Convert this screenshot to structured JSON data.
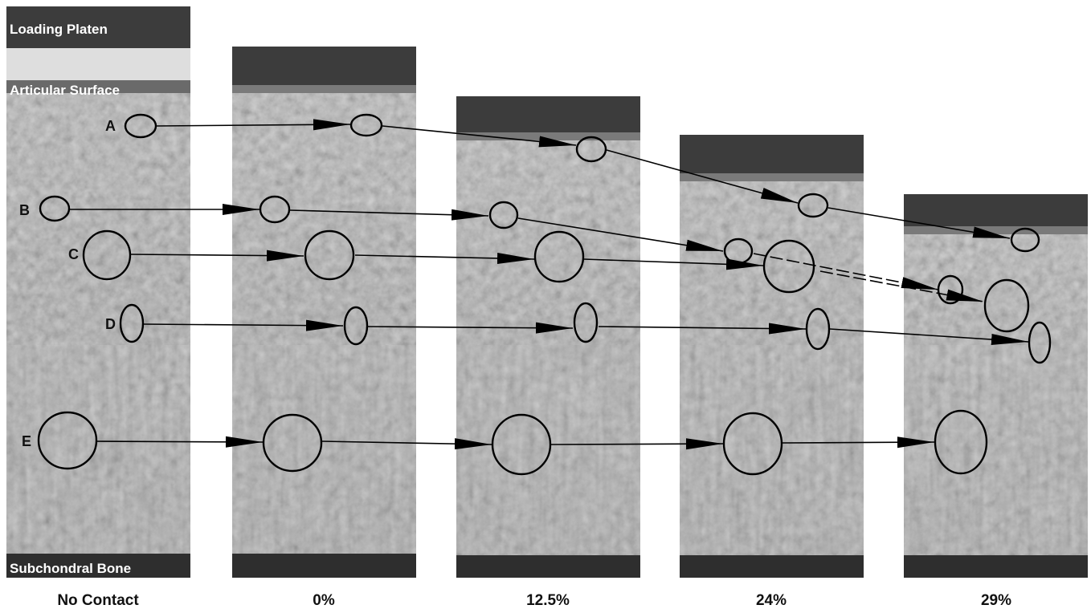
{
  "overlay_labels": {
    "top": "Loading Platen",
    "surface": "Articular Surface",
    "bottom": "Subchondral Bone"
  },
  "panels": [
    {
      "label": "No Contact"
    },
    {
      "label": "0%"
    },
    {
      "label": "12.5%"
    },
    {
      "label": "24%"
    },
    {
      "label": "29%"
    }
  ],
  "cells": [
    "A",
    "B",
    "C",
    "D",
    "E"
  ],
  "colors": {
    "tissue": "#b3b3b3",
    "platen": "#3a3a3a",
    "bone": "#2e2e2e",
    "annotation": "#000000"
  }
}
